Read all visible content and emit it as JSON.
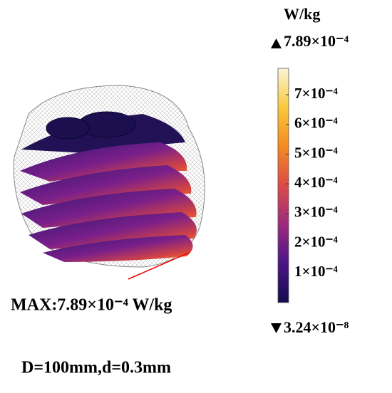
{
  "colorbar": {
    "unit": "W/kg",
    "max": {
      "value": 0.000789,
      "label": "7.89×10⁻⁴"
    },
    "min": {
      "value": 3.24e-08,
      "label": "3.24×10⁻⁸"
    },
    "ticks": [
      {
        "value": 0.0001,
        "label": "1×10⁻⁴"
      },
      {
        "value": 0.0002,
        "label": "2×10⁻⁴"
      },
      {
        "value": 0.0003,
        "label": "3×10⁻⁴"
      },
      {
        "value": 0.0004,
        "label": "4×10⁻⁴"
      },
      {
        "value": 0.0005,
        "label": "5×10⁻⁴"
      },
      {
        "value": 0.0006,
        "label": "6×10⁻⁴"
      },
      {
        "value": 0.0007,
        "label": "7×10⁻⁴"
      }
    ],
    "colormap": [
      "#150d4d",
      "#4a1486",
      "#9c2a7e",
      "#dd4a48",
      "#f58a1f",
      "#f9c93e",
      "#fcf5d6"
    ]
  },
  "annotation": "MAX:7.89×10⁻⁴ W/kg",
  "caption": "D=100mm,d=0.3mm"
}
